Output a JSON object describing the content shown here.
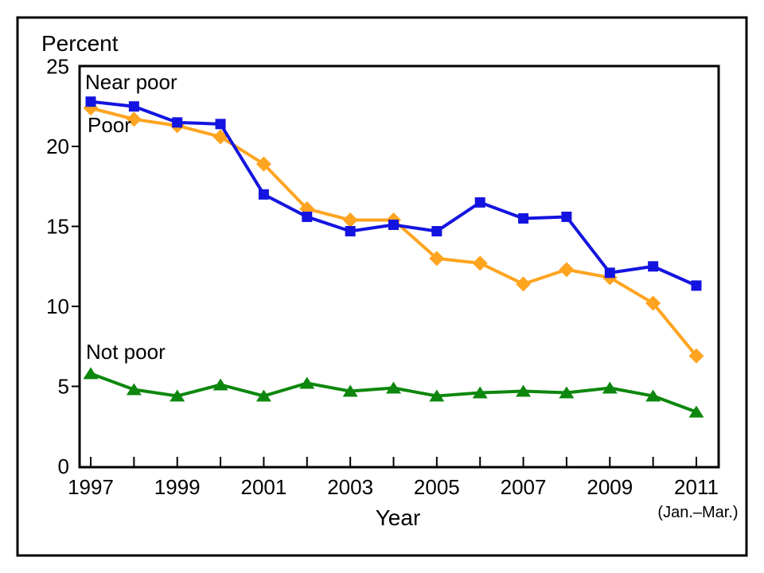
{
  "chart_data": {
    "type": "line",
    "title": "",
    "ylabel": "Percent",
    "xlabel": "Year",
    "x_last_note": "(Jan.–Mar.)",
    "ylim": [
      0,
      25
    ],
    "yticks": [
      0,
      5,
      10,
      15,
      20,
      25
    ],
    "x": [
      1997,
      1998,
      1999,
      2000,
      2001,
      2002,
      2003,
      2004,
      2005,
      2006,
      2007,
      2008,
      2009,
      2010,
      2011
    ],
    "xtick_labeled": [
      1997,
      1999,
      2001,
      2003,
      2005,
      2007,
      2009,
      2011
    ],
    "grid": false,
    "legend_position": "inline labels beside lines",
    "series": [
      {
        "name": "Near poor",
        "marker": "square",
        "color": "#1414e0",
        "values": [
          22.8,
          22.5,
          21.5,
          21.4,
          17.0,
          15.6,
          14.7,
          15.1,
          14.7,
          16.5,
          15.5,
          15.6,
          12.1,
          12.5,
          11.3
        ]
      },
      {
        "name": "Poor",
        "marker": "diamond",
        "color": "#ffa420",
        "values": [
          22.4,
          21.7,
          21.3,
          20.6,
          18.9,
          16.1,
          15.4,
          15.4,
          13.0,
          12.7,
          11.4,
          12.3,
          11.8,
          10.2,
          6.9
        ]
      },
      {
        "name": "Not poor",
        "marker": "triangle",
        "color": "#0d870d",
        "values": [
          5.8,
          4.8,
          4.4,
          5.1,
          4.4,
          5.2,
          4.7,
          4.9,
          4.4,
          4.6,
          4.7,
          4.6,
          4.9,
          4.4,
          3.4
        ]
      }
    ]
  }
}
